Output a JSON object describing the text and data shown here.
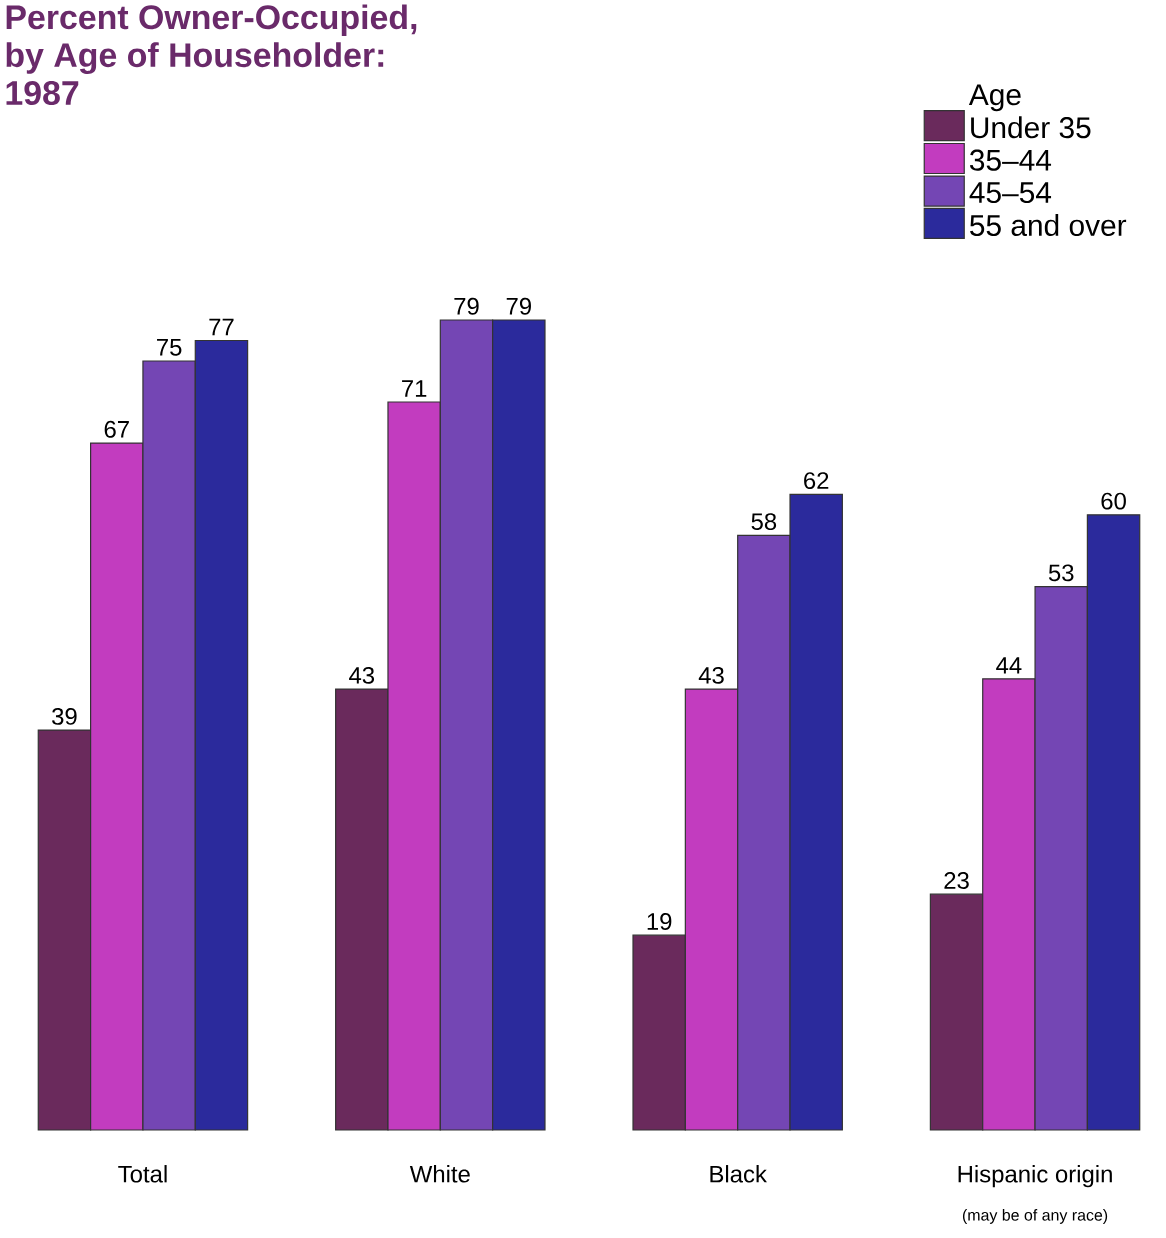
{
  "chart_data": {
    "type": "bar",
    "title": "Percent Owner-Occupied,\nby Age of Householder:\n1987",
    "categories": [
      "Total",
      "White",
      "Black",
      "Hispanic origin"
    ],
    "legend_title": "Age",
    "legend": "top right",
    "data_labels": true,
    "annotations": [
      "(may be of any race)"
    ],
    "series": [
      {
        "name": "Under 35",
        "color": "#6a2a5c",
        "values": [
          39,
          43,
          19,
          23
        ]
      },
      {
        "name": "35–44",
        "color": "#c23cbf",
        "values": [
          67,
          71,
          43,
          44
        ]
      },
      {
        "name": "45–54",
        "color": "#7446b4",
        "values": [
          75,
          79,
          58,
          53
        ]
      },
      {
        "name": "55 and over",
        "color": "#2b2a9c",
        "values": [
          77,
          79,
          62,
          60
        ]
      }
    ]
  }
}
